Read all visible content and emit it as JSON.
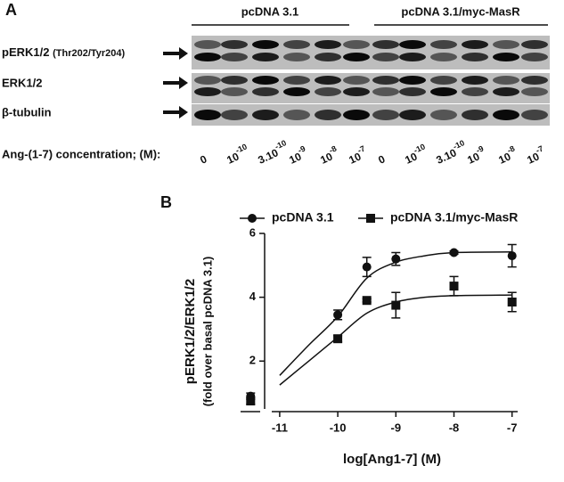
{
  "panel_a": {
    "letter": "A",
    "groups": [
      "pcDNA 3.1",
      "pcDNA 3.1/myc-MasR"
    ],
    "rows": [
      {
        "label": "pERK1/2",
        "sub": "(Thr202/Tyr204)"
      },
      {
        "label": "ERK1/2"
      },
      {
        "label": "β-tubulin"
      }
    ],
    "concentration_label": "Ang-(1-7) concentration; (M):",
    "lanes": [
      {
        "base": "0"
      },
      {
        "base": "10",
        "exp": "-10"
      },
      {
        "base": "3.10",
        "exp": "-10"
      },
      {
        "base": "10",
        "exp": "-9"
      },
      {
        "base": "10",
        "exp": "-8"
      },
      {
        "base": "10",
        "exp": "-7"
      }
    ]
  },
  "chart_data": {
    "type": "scatter",
    "letter": "B",
    "y_label": "pERK1/2/ERK1/2",
    "y_label_sub": "(fold over basal pcDNA 3.1)",
    "x_label": "log[Ang1-7] (M)",
    "xlim": [
      -11.75,
      -6.75
    ],
    "ylim": [
      0.5,
      6
    ],
    "xticks": [
      -11,
      -10,
      -9,
      -8,
      -7
    ],
    "yticks": [
      2,
      4,
      6
    ],
    "series": [
      {
        "name": "pcDNA 3.1",
        "marker": "circle",
        "color": "#111111",
        "x": [
          -11.5,
          -10,
          -9.5,
          -9,
          -8,
          -7
        ],
        "values": [
          0.9,
          3.45,
          4.95,
          5.2,
          5.4,
          5.3
        ],
        "errors": [
          0.1,
          0.15,
          0.3,
          0.2,
          0.05,
          0.35
        ],
        "fit": {
          "x": [
            -11,
            -10.5,
            -10,
            -9.5,
            -9,
            -8.5,
            -8,
            -7
          ],
          "values": [
            1.55,
            2.5,
            3.4,
            4.6,
            5.1,
            5.3,
            5.4,
            5.42
          ]
        }
      },
      {
        "name": "pcDNA 3.1/myc-MasR",
        "marker": "square",
        "color": "#111111",
        "x": [
          -11.5,
          -10,
          -9.5,
          -9,
          -8,
          -7
        ],
        "values": [
          0.75,
          2.7,
          3.9,
          3.75,
          4.35,
          3.85
        ],
        "errors": [
          0.1,
          0.1,
          0.05,
          0.4,
          0.3,
          0.3
        ],
        "fit": {
          "x": [
            -11,
            -10.5,
            -10,
            -9.5,
            -9,
            -8.5,
            -8,
            -7
          ],
          "values": [
            1.25,
            2.0,
            2.75,
            3.5,
            3.85,
            4.0,
            4.05,
            4.07
          ]
        }
      }
    ]
  }
}
